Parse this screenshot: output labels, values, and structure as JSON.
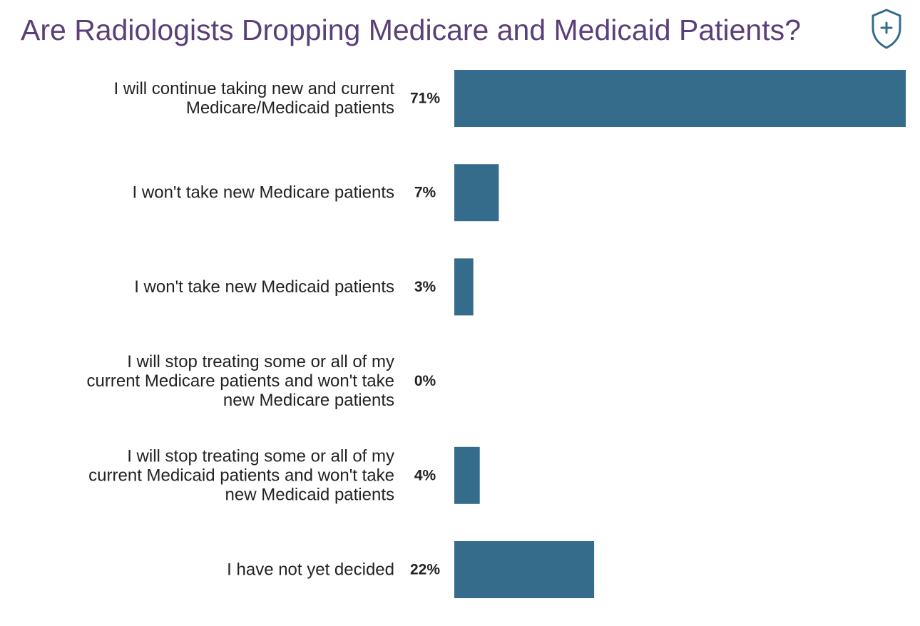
{
  "chart_data": {
    "type": "bar",
    "orientation": "horizontal",
    "title": "Are Radiologists Dropping Medicare and Medicaid Patients?",
    "categories": [
      "I will continue taking new and current Medicare/Medicaid patients",
      "I won't take new Medicare patients",
      "I won't take new Medicaid patients",
      "I will stop treating some or all of my current Medicare patients and won't take new Medicare patients",
      "I will stop treating some or all of my current Medicaid patients and won't take new Medicaid patients",
      "I have not yet decided"
    ],
    "category_lines": [
      [
        "I will continue taking new and current",
        "Medicare/Medicaid patients"
      ],
      [
        "I won't take new Medicare patients"
      ],
      [
        "I won't take new Medicaid patients"
      ],
      [
        "I will stop treating some or all of my",
        "current Medicare patients and won't take",
        "new Medicare patients"
      ],
      [
        "I will stop treating some or all of my",
        "current Medicaid patients and won't take",
        "new Medicaid patients"
      ],
      [
        "I have not yet decided"
      ]
    ],
    "values": [
      71,
      7,
      3,
      0,
      4,
      22
    ],
    "value_labels": [
      "71%",
      "7%",
      "3%",
      "0%",
      "4%",
      "22%"
    ],
    "unit": "%",
    "bar_color": "#356c8c",
    "grid": false,
    "legend": "none"
  },
  "icons": {
    "corner_icon": "shield-plus-icon",
    "corner_icon_color": "#356c8c"
  },
  "colors": {
    "title": "#5a3f78",
    "text": "#222222"
  }
}
